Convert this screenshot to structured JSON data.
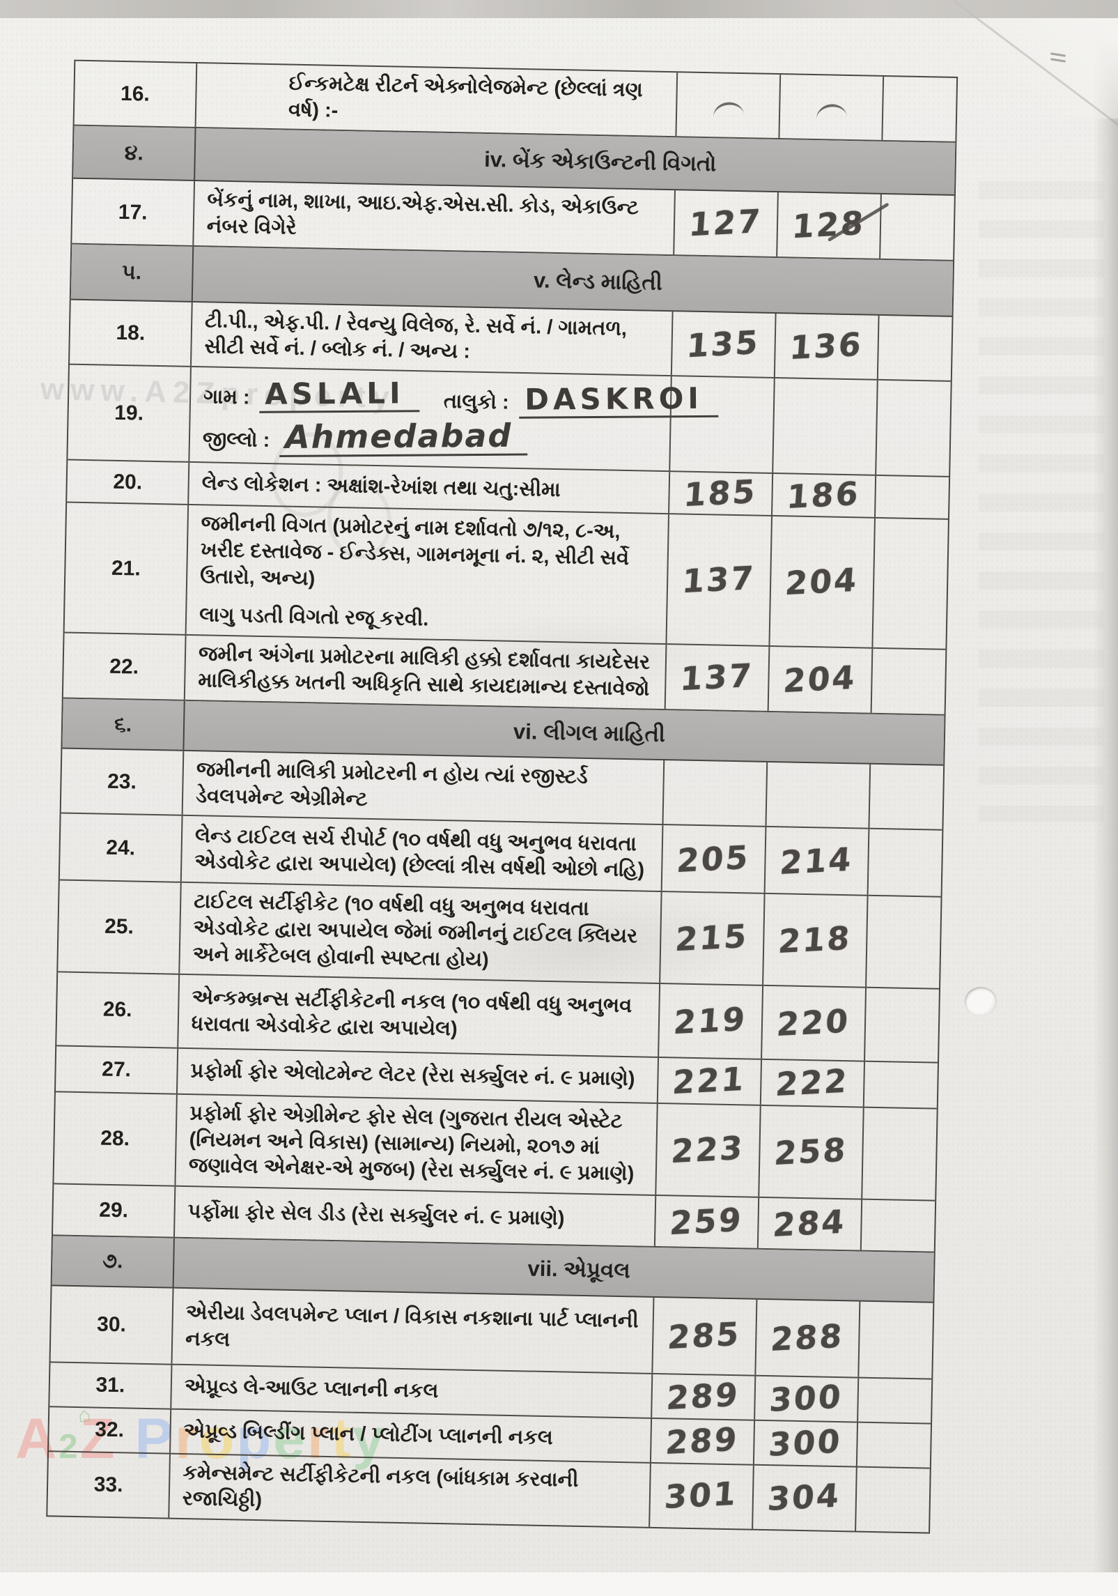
{
  "document": {
    "type": "scanned checklist form",
    "language": "Gujarati",
    "sections_visible": [
      "iv",
      "v",
      "vi",
      "vii"
    ]
  },
  "table": {
    "rows": [
      {
        "kind": "item",
        "no": "16.",
        "desc": "ઈન્કમટેક્ષ રીટર્ન એક્નોલેજમેન્ટ (છેલ્લાં ત્રણ વર્ષ) :-",
        "from": "",
        "to": "",
        "tick_from": true,
        "tick_to": true
      },
      {
        "kind": "section",
        "no": "૪.",
        "title": "iv. બેંક એકાઉન્ટની વિગતો"
      },
      {
        "kind": "item",
        "no": "17.",
        "desc": "બેંકનું નામ, શાખા, આઇ.એફ.એસ.સી. કોડ, એકાઉન્ટ નંબર વિગેરે",
        "from": "127",
        "to": "128",
        "to_ticked": true
      },
      {
        "kind": "section",
        "no": "૫.",
        "title": "v. લેન્ડ માહિતી"
      },
      {
        "kind": "item",
        "no": "18.",
        "desc": "ટી.પી., એફ.પી. / રેવન્યુ વિલેજ, રે. સર્વે નં. / ગામતળ, સીટી સર્વે નં. / બ્લોક નં. / અન્ય :",
        "from": "135",
        "to": "136"
      },
      {
        "kind": "village",
        "no": "19.",
        "fields": [
          {
            "label": "ગામ :",
            "value": "ASLALI"
          },
          {
            "label": "તાલુકો :",
            "value": "DASKROI"
          },
          {
            "label": "જીલ્લો :",
            "value": "Ahmedabad"
          }
        ]
      },
      {
        "kind": "item",
        "no": "20.",
        "desc": "લેન્ડ લોકેશન : અક્ષાંશ-રેખાંશ તથા ચતુ:સીમા",
        "from": "185",
        "to": "186"
      },
      {
        "kind": "item",
        "no": "21.",
        "desc": "જમીનની વિગત (પ્રમોટરનું નામ દર્શાવતો ૭/૧૨, ૮-અ, ખરીદ દસ્તાવેજ - ઈન્ડેક્સ, ગામનમૂના નં. ૨, સીટી સર્વે ઉતારો, અન્ય)",
        "desc2": "લાગુ પડતી વિગતો રજૂ કરવી.",
        "from": "137",
        "to": "204"
      },
      {
        "kind": "item",
        "no": "22.",
        "desc": "જમીન અંગેના પ્રમોટરના માલિકી હક્કો દર્શાવતા કાયદેસર માલિકીહક્ક ખતની અધિકૃતિ સાથે કાયદામાન્ય દસ્તાવેજો",
        "from": "137",
        "to": "204"
      },
      {
        "kind": "section",
        "no": "૬.",
        "title": "vi. લીગલ માહિતી"
      },
      {
        "kind": "item",
        "no": "23.",
        "desc": "જમીનની માલિકી પ્રમોટરની ન હોય ત્યાં રજીસ્ટર્ડ ડેવલપમેન્ટ એગ્રીમેન્ટ",
        "from": "",
        "to": ""
      },
      {
        "kind": "item",
        "no": "24.",
        "desc": "લેન્ડ ટાઈટલ સર્ચ રીપોર્ટ (૧૦ વર્ષથી વધુ અનુભવ ધરાવતા એડવોકેટ દ્વારા અપાયેલ) (છેલ્લાં ત્રીસ વર્ષથી ઓછો નહિ)",
        "from": "205",
        "to": "214"
      },
      {
        "kind": "item",
        "no": "25.",
        "desc": "ટાઈટલ સર્ટીફીકેટ (૧૦ વર્ષથી વધુ અનુભવ ધરાવતા એડવોકેટ દ્વારા અપાયેલ જેમાં જમીનનું ટાઈટલ ક્લિયર અને માર્કેટેબલ હોવાની સ્પષ્ટતા હોય)",
        "from": "215",
        "to": "218"
      },
      {
        "kind": "item",
        "no": "26.",
        "desc": "એન્કમ્બ્રન્સ સર્ટીફીકેટની નકલ (૧૦ વર્ષથી વધુ અનુભવ ધરાવતા એડવોકેટ દ્વારા અપાયેલ)",
        "from": "219",
        "to": "220"
      },
      {
        "kind": "item",
        "no": "27.",
        "desc": "પ્રફોર્મા ફોર એલોટમેન્ટ લેટર (રેરા સર્ક્યુલર નં. ૯ પ્રમાણે)",
        "from": "221",
        "to": "222"
      },
      {
        "kind": "item",
        "no": "28.",
        "desc": "પ્રફોર્મા ફોર એગ્રીમેન્ટ ફોર સેલ (ગુજરાત રીયલ એસ્ટેટ (નિયમન અને વિકાસ) (સામાન્ય) નિયમો, ૨૦૧૭ માં જણાવેલ એનેક્ષર-એ મુજબ) (રેરા સર્ક્યુલર નં. ૯ પ્રમાણે)",
        "from": "223",
        "to": "258"
      },
      {
        "kind": "item",
        "no": "29.",
        "desc": "પર્ફોમા ફોર સેલ ડીડ (રેરા સર્ક્યુલર નં. ૯ પ્રમાણે)",
        "from": "259",
        "to": "284"
      },
      {
        "kind": "section",
        "no": "૭.",
        "title": "vii. એપ્રૂવલ"
      },
      {
        "kind": "item",
        "no": "30.",
        "desc": "એરીયા ડેવલપમેન્ટ પ્લાન / વિકાસ નકશાના પાર્ટ પ્લાનની નકલ",
        "from": "285",
        "to": "288"
      },
      {
        "kind": "item",
        "no": "31.",
        "desc": "એપ્રૂવ્ડ લે-આઉટ પ્લાનની નકલ",
        "from": "289",
        "to": "300"
      },
      {
        "kind": "item",
        "no": "32.",
        "desc": "એપ્રૂવ્ડ બિલ્ડીંગ પ્લાન / પ્લોટીંગ પ્લાનની નકલ",
        "from": "289",
        "to": "300"
      },
      {
        "kind": "item",
        "no": "33.",
        "desc": "કમેન્સમેન્ટ સર્ટીફીકેટની નકલ (બાંધકામ કરવાની રજાચિઠ્ઠી)",
        "from": "301",
        "to": "304"
      }
    ]
  },
  "watermarks": {
    "side_text": "www.A2Zproperty",
    "brand_doodle": "⌂",
    "brand_letters": [
      {
        "ch": "A",
        "color": "#f19b94",
        "small": false
      },
      {
        "ch": "2",
        "color": "#8cc98c",
        "small": true
      },
      {
        "ch": "Z",
        "color": "#f19b94",
        "small": false
      },
      {
        "ch": " ",
        "color": "",
        "small": false
      },
      {
        "ch": "P",
        "color": "#9bb9ee",
        "small": false
      },
      {
        "ch": "r",
        "color": "#f2b079",
        "small": false
      },
      {
        "ch": "o",
        "color": "#f5d263",
        "small": false
      },
      {
        "ch": "p",
        "color": "#9bb9ee",
        "small": false
      },
      {
        "ch": "e",
        "color": "#93cf9d",
        "small": false
      },
      {
        "ch": "r",
        "color": "#f2b079",
        "small": false
      },
      {
        "ch": "t",
        "color": "#f5d263",
        "small": false
      },
      {
        "ch": "y",
        "color": "#93cf9d",
        "small": false
      }
    ]
  },
  "colors": {
    "paper": "#efeeec",
    "section_band": "#b2b0af",
    "grid_line": "#3b3733",
    "print_text": "#221f1c",
    "handwriting": "#4b4743"
  }
}
